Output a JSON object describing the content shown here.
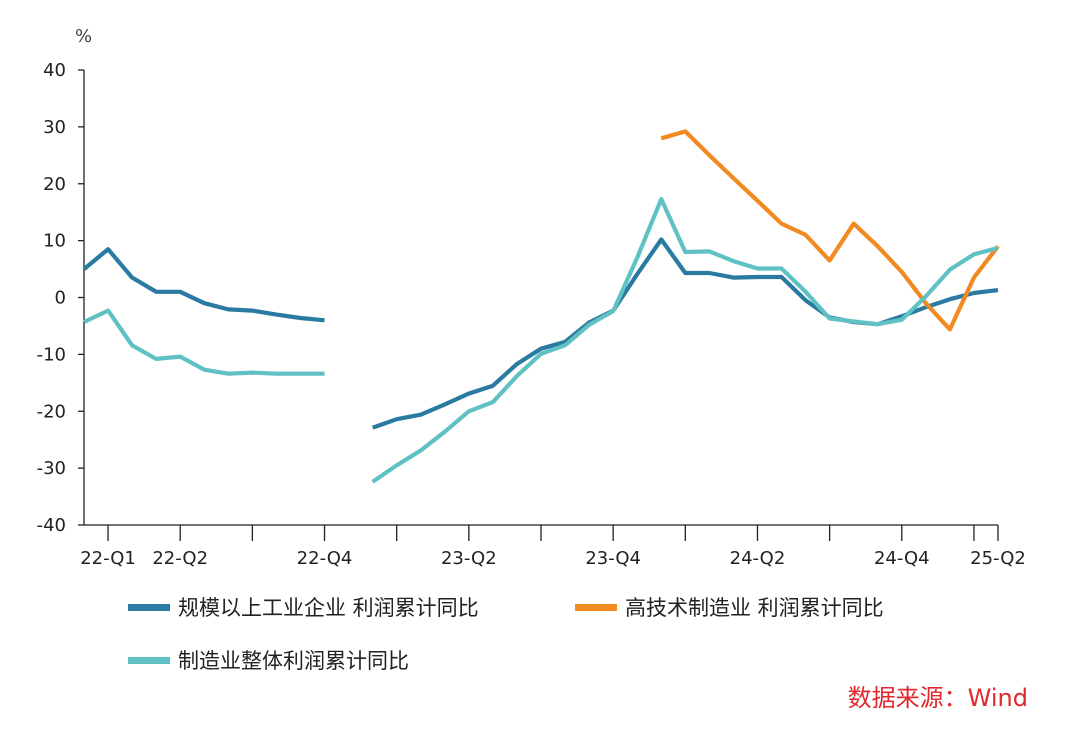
{
  "source": "数据来源：Wind",
  "colors": {
    "series1": "#2a7aa2",
    "series2": "#f28a22",
    "series3": "#5fc1c3"
  },
  "chart_data": {
    "type": "line",
    "ylabel": "%",
    "ylim": [
      -40,
      40
    ],
    "yticks": [
      40,
      30,
      20,
      10,
      0,
      -10,
      -20,
      -30,
      -40
    ],
    "xticklabels": [
      "22-Q1",
      "22-Q2",
      "22-Q4",
      "23-Q2",
      "23-Q4",
      "24-Q2",
      "24-Q4",
      "25-Q2"
    ],
    "legend": "bottom",
    "grid": false,
    "series": [
      {
        "name": "规模以上工业企业 利润累计同比",
        "color": "#2a7aa2",
        "values": [
          5.0,
          8.5,
          3.5,
          1.0,
          1.0,
          -1.0,
          -2.1,
          -2.3,
          -3.0,
          -3.6,
          -4.0,
          null,
          -22.9,
          -21.4,
          -20.6,
          -18.8,
          -16.9,
          -15.5,
          -11.7,
          -9.0,
          -7.8,
          -4.4,
          -2.3,
          4.1,
          10.2,
          4.3,
          4.3,
          3.5,
          3.6,
          3.6,
          -0.5,
          -3.5,
          -4.3,
          -4.7,
          -3.3,
          -1.7,
          -0.3,
          0.8,
          1.3
        ]
      },
      {
        "name": "高技术制造业 利润累计同比",
        "color": "#f28a22",
        "values": [
          null,
          null,
          null,
          null,
          null,
          null,
          null,
          null,
          null,
          null,
          null,
          null,
          null,
          null,
          null,
          null,
          null,
          null,
          null,
          null,
          null,
          null,
          null,
          null,
          28.0,
          29.2,
          25.0,
          21.0,
          17.0,
          13.0,
          11.0,
          6.5,
          13.0,
          9.0,
          4.5,
          -1.0,
          -5.6,
          3.5,
          9.0
        ]
      },
      {
        "name": "制造业整体利润累计同比",
        "color": "#5fc1c3",
        "values": [
          -4.3,
          -2.3,
          -8.4,
          -10.8,
          -10.4,
          -12.7,
          -13.4,
          -13.2,
          -13.4,
          -13.4,
          -13.4,
          null,
          -32.4,
          -29.5,
          -26.9,
          -23.6,
          -20.0,
          -18.4,
          -13.8,
          -9.9,
          -8.4,
          -4.8,
          -2.4,
          7.0,
          17.3,
          8.0,
          8.1,
          6.4,
          5.1,
          5.1,
          1.0,
          -3.7,
          -4.2,
          -4.7,
          -3.9,
          0.2,
          4.9,
          7.6,
          8.7
        ]
      }
    ]
  }
}
